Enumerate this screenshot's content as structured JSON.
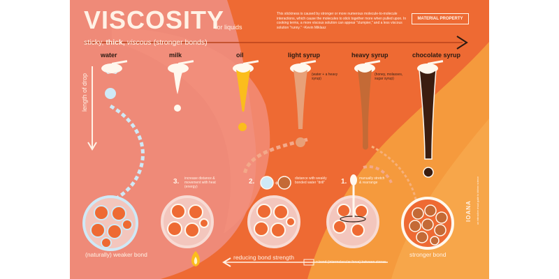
{
  "colors": {
    "poster_background": "#ee6a33",
    "pink_region": "#ef8a78",
    "yellow_region": "#f59a3d",
    "water_drop": "#cfe9f6",
    "milk_drop": "#fff8ee",
    "oil_drop": "#fbbd1c",
    "light_syrup_drop": "#e8a078",
    "heavy_syrup_drop": "#c46a36",
    "chocolate_syrup_drop": "#3b1d10"
  },
  "header": {
    "title": "VISCOSITY",
    "subtitle": "for liquids",
    "quote": "This stickiness is caused by stronger or more numerous molecule-to-molecule interactions, which cause the molecules to stick together more when pulled upon. In cooking terms, a more viscous solution can appear \"clumpier,\" and a less viscous solution \"runny.\" ~Kevin Miklasz",
    "badge": "MATERIAL PROPERTY"
  },
  "scale": {
    "sticky": "sticky,",
    "thick": "thick,",
    "viscous": "viscous",
    "bonds": "(stronger bonds)"
  },
  "axis": {
    "drop_length": "length of drop"
  },
  "liquids": [
    {
      "name": "water",
      "note": ""
    },
    {
      "name": "milk",
      "note": ""
    },
    {
      "name": "oil",
      "note": ""
    },
    {
      "name": "light syrup",
      "note": "(water + a heavy syrup)"
    },
    {
      "name": "heavy syrup",
      "note": "(honey, molasses, sugar syrup)"
    },
    {
      "name": "chocolate syrup",
      "note": ""
    }
  ],
  "steps": [
    {
      "number": "1.",
      "text": "manually stretch & rearrange"
    },
    {
      "number": "2.",
      "text": "distance with weakly bonded water \"drill\""
    },
    {
      "number": "3.",
      "text": "increase distance & movement with heat (energy)"
    }
  ],
  "bottom": {
    "weaker": "(naturally) weaker bond",
    "stronger": "stronger bond",
    "reducing": "reducing bond strength",
    "legend": "= bond (intermolecular force) between stones"
  },
  "credit": {
    "brand": "IOANA",
    "fine_print": "an interactive visual guide to kitchen science"
  }
}
